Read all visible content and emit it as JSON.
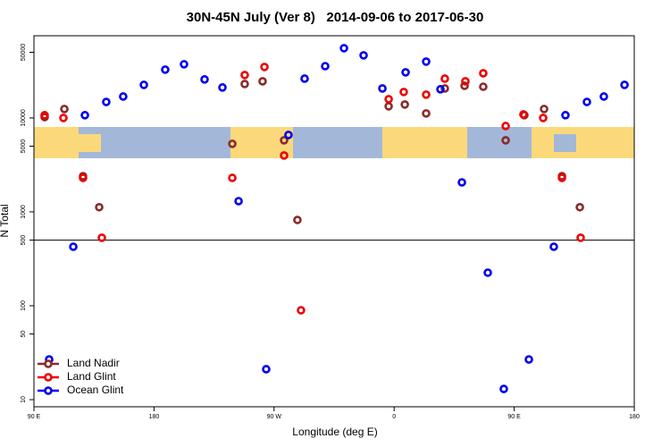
{
  "chart_data": {
    "type": "scatter",
    "title": "30N-45N July (Ver 8)   2014-09-06 to 2017-06-30",
    "x_label": "Longitude (deg E)",
    "y_label": "N Total",
    "log_y": true,
    "legend": "lower left",
    "hline": 500,
    "xlim": [
      90,
      540
    ],
    "xticks": [
      {
        "value": 90,
        "label": "90 E"
      },
      180,
      {
        "value": 270,
        "label": "90 W"
      },
      {
        "value": 360,
        "label": "0"
      },
      {
        "value": 450,
        "label": "90 E"
      },
      {
        "value": 540,
        "label": "180"
      }
    ],
    "ylim": [
      8.4,
      75000
    ],
    "yticks": [
      10,
      50,
      100,
      500,
      1000,
      5000,
      10000,
      50000
    ],
    "series": [
      {
        "name": "Land Nadir",
        "color": "#8b2a2a",
        "x": [
          98,
          112.8,
          126.8,
          138.9,
          238.7,
          248,
          261.4,
          277.5,
          287.5,
          355.9,
          368,
          384,
          398,
          412.8,
          426.8,
          443.6,
          457.6,
          472.4,
          485.8,
          499.2
        ],
        "values": [
          10200,
          12450,
          2400,
          1120,
          5300,
          23000,
          24550,
          5780,
          820,
          13300,
          13900,
          11170,
          20600,
          22000,
          21500,
          5780,
          10700,
          12450,
          2400,
          1120
        ]
      },
      {
        "name": "Land Glint",
        "color": "#ee0000",
        "x": [
          98,
          112.1,
          126.8,
          140.9,
          238.7,
          248,
          262.8,
          277.5,
          290.2,
          355.9,
          367.2,
          384,
          398,
          413.4,
          426.8,
          443.6,
          456.9,
          471.7,
          485.8,
          499.8
        ],
        "values": [
          10700,
          10000,
          2300,
          530,
          2300,
          28640,
          34900,
          3980,
          89.6,
          15850,
          18900,
          17700,
          26200,
          24550,
          29900,
          8200,
          10900,
          10000,
          2300,
          530
        ]
      },
      {
        "name": "Ocean Glint",
        "color": "#0000ee",
        "x": [
          101.4,
          119.5,
          128.2,
          144.2,
          156.9,
          172.4,
          188.4,
          202.5,
          217.9,
          231.3,
          243.4,
          264.1,
          280.8,
          292.9,
          308.3,
          322.4,
          337.1,
          351.2,
          368.6,
          384,
          394.7,
          410.8,
          430.2,
          442.2,
          461,
          479.7,
          488.4,
          504.5,
          517.2,
          532.7
        ],
        "values": [
          26.8,
          425,
          10700,
          14800,
          16900,
          22500,
          32700,
          37300,
          25700,
          21100,
          1300,
          21.1,
          6590,
          26200,
          35600,
          55300,
          46400,
          20600,
          30600,
          39800,
          20200,
          2060,
          225,
          13,
          26.8,
          425,
          10700,
          14800,
          16900,
          22500
        ]
      }
    ]
  }
}
